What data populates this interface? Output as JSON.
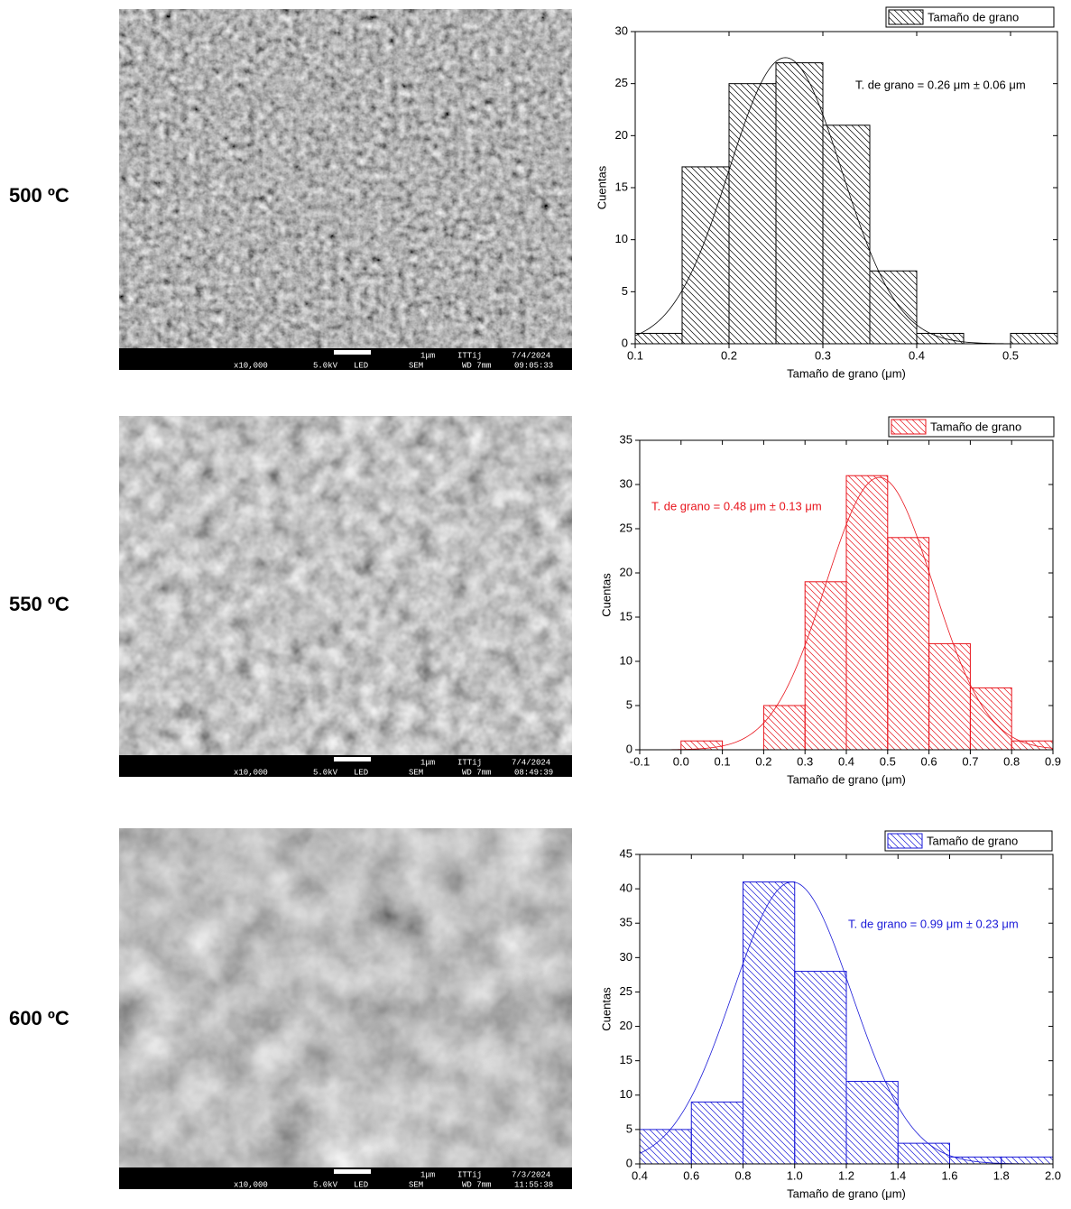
{
  "panels": [
    {
      "label": "500 ºC",
      "sem_footer": {
        "magnification": "x10,000",
        "voltage": "5.0kV",
        "detector": "LED",
        "mode": "SEM",
        "wd": "WD 7mm",
        "scale": "1μm",
        "lab": "ITTij",
        "date": "7/4/2024",
        "time": "09:05:33"
      }
    },
    {
      "label": "550 ºC",
      "sem_footer": {
        "magnification": "x10,000",
        "voltage": "5.0kV",
        "detector": "LED",
        "mode": "SEM",
        "wd": "WD 7mm",
        "scale": "1μm",
        "lab": "ITTij",
        "date": "7/4/2024",
        "time": "08:49:39"
      }
    },
    {
      "label": "600 ºC",
      "sem_footer": {
        "magnification": "x10,000",
        "voltage": "5.0kV",
        "detector": "LED",
        "mode": "SEM",
        "wd": "WD 7mm",
        "scale": "1μm",
        "lab": "ITTij",
        "date": "7/3/2024",
        "time": "11:55:38"
      }
    }
  ],
  "chart_data": [
    {
      "type": "histogram",
      "name": "Tamaño de grano",
      "color": "#000000",
      "bins": [
        0.1,
        0.15,
        0.2,
        0.25,
        0.3,
        0.35,
        0.4,
        0.45,
        0.5,
        0.55
      ],
      "values": [
        1,
        17,
        25,
        27,
        21,
        7,
        1,
        0,
        1
      ],
      "fit": {
        "center": 0.26,
        "sd": 0.06,
        "peak": 27.5
      },
      "annotation": "T. de grano = 0.26 μm ± 0.06 μm",
      "x_label": "Tamaño de grano (μm)",
      "y_label": "Cuentas",
      "xlim": [
        0.1,
        0.55
      ],
      "xticks": [
        0.1,
        0.2,
        0.3,
        0.4,
        0.5
      ],
      "ylim": [
        0,
        30
      ],
      "yticks": [
        0,
        5,
        10,
        15,
        20,
        25,
        30
      ]
    },
    {
      "type": "histogram",
      "name": "Tamaño de grano",
      "color": "#e8141c",
      "bins": [
        -0.1,
        0,
        0.1,
        0.2,
        0.3,
        0.4,
        0.5,
        0.6,
        0.7,
        0.8,
        0.9
      ],
      "values": [
        0,
        1,
        0,
        5,
        19,
        31,
        24,
        12,
        7,
        1
      ],
      "fit": {
        "center": 0.48,
        "sd": 0.13,
        "peak": 30.8
      },
      "annotation": "T. de grano = 0.48 μm ± 0.13 μm",
      "x_label": "Tamaño de grano (μm)",
      "y_label": "Cuentas",
      "xlim": [
        -0.1,
        0.9
      ],
      "xticks": [
        -0.1,
        {
          "value": 0,
          "label": "0.0"
        },
        0.1,
        0.2,
        0.3,
        0.4,
        0.5,
        0.6,
        0.7,
        0.8,
        0.9
      ],
      "ylim": [
        0,
        35
      ],
      "yticks": [
        0,
        5,
        10,
        15,
        20,
        25,
        30,
        35
      ]
    },
    {
      "type": "histogram",
      "name": "Tamaño de grano",
      "color": "#1a1ad8",
      "bins": [
        0.4,
        0.6,
        0.8,
        1.0,
        1.2,
        1.4,
        1.6,
        1.8,
        2.0
      ],
      "values": [
        5,
        9,
        41,
        28,
        12,
        3,
        1,
        1
      ],
      "fit": {
        "center": 0.99,
        "sd": 0.23,
        "peak": 41
      },
      "annotation": "T. de grano = 0.99 μm ± 0.23 μm",
      "x_label": "Tamaño de grano (μm)",
      "y_label": "Cuentas",
      "xlim": [
        0.4,
        2.0
      ],
      "xticks": [
        0.4,
        0.6,
        0.8,
        {
          "value": 1,
          "label": "1.0"
        },
        1.2,
        1.4,
        1.6,
        1.8,
        {
          "value": 2,
          "label": "2.0"
        }
      ],
      "ylim": [
        0,
        45
      ],
      "yticks": [
        0,
        5,
        10,
        15,
        20,
        25,
        30,
        35,
        40,
        45
      ]
    }
  ]
}
